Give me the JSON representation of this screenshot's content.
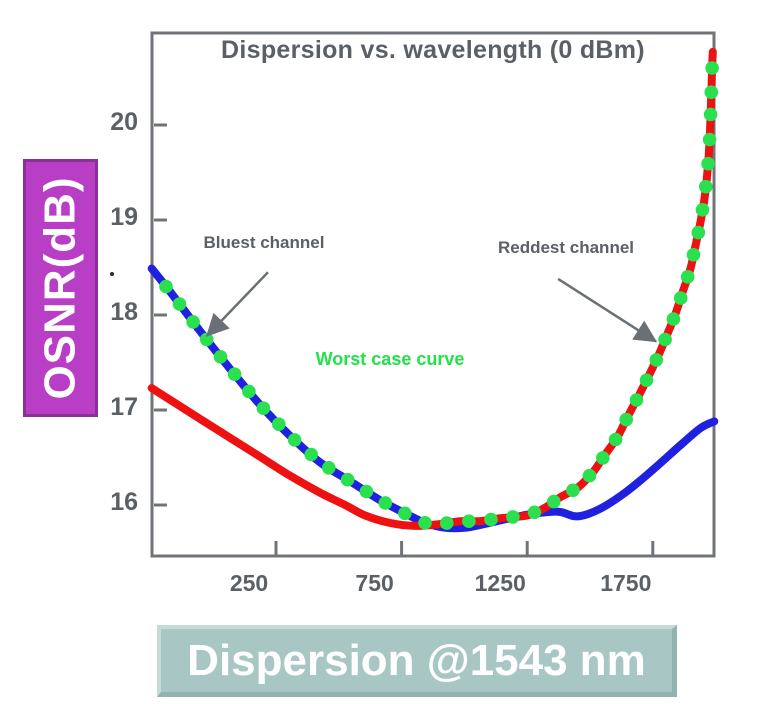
{
  "page": {
    "background": "#ffffff",
    "text_gray": "#5a6066",
    "axis_gray": "#70747a"
  },
  "ylabel_box": {
    "text": "OSNR(dB)",
    "fill": "#b93ec6",
    "border": "#8d2f98",
    "text_color": "#ffffff"
  },
  "xlabel_box": {
    "text": "Dispersion @1543 nm",
    "fill": "#a8c7c4",
    "text_color": "#ffffff"
  },
  "chart_data": {
    "type": "line",
    "title": "Dispersion vs. wavelength (0 dBm)",
    "xlabel": "Dispersion @1543 nm",
    "ylabel": "OSNR(dB)",
    "x_ticks": [
      250,
      750,
      1250,
      1750
    ],
    "y_ticks": [
      16,
      17,
      18,
      19,
      20
    ],
    "xlim": [
      -245,
      2000
    ],
    "ylim": [
      15.46,
      20.97
    ],
    "grid": false,
    "legend": "none",
    "series": [
      {
        "name": "Bluest channel",
        "color": "#2020df",
        "style": "solid",
        "points": [
          [
            -245,
            18.49
          ],
          [
            -170,
            18.24
          ],
          [
            -55,
            17.84
          ],
          [
            65,
            17.44
          ],
          [
            185,
            17.06
          ],
          [
            305,
            16.73
          ],
          [
            425,
            16.45
          ],
          [
            545,
            16.25
          ],
          [
            665,
            16.05
          ],
          [
            765,
            15.91
          ],
          [
            845,
            15.81
          ],
          [
            925,
            15.76
          ],
          [
            1000,
            15.76
          ],
          [
            1080,
            15.8
          ],
          [
            1180,
            15.86
          ],
          [
            1280,
            15.91
          ],
          [
            1375,
            15.93
          ],
          [
            1450,
            15.88
          ],
          [
            1540,
            15.96
          ],
          [
            1645,
            16.14
          ],
          [
            1750,
            16.37
          ],
          [
            1860,
            16.63
          ],
          [
            1940,
            16.81
          ],
          [
            1995,
            16.88
          ]
        ]
      },
      {
        "name": "Reddest channel",
        "color": "#ee1111",
        "style": "solid",
        "points": [
          [
            -245,
            17.23
          ],
          [
            -150,
            17.07
          ],
          [
            -55,
            16.91
          ],
          [
            65,
            16.71
          ],
          [
            185,
            16.51
          ],
          [
            305,
            16.31
          ],
          [
            425,
            16.13
          ],
          [
            525,
            16.0
          ],
          [
            605,
            15.89
          ],
          [
            705,
            15.81
          ],
          [
            805,
            15.78
          ],
          [
            905,
            15.8
          ],
          [
            985,
            15.83
          ],
          [
            1060,
            15.83
          ],
          [
            1140,
            15.86
          ],
          [
            1250,
            15.89
          ],
          [
            1320,
            15.97
          ],
          [
            1380,
            16.08
          ],
          [
            1450,
            16.18
          ],
          [
            1510,
            16.34
          ],
          [
            1560,
            16.53
          ],
          [
            1610,
            16.72
          ],
          [
            1650,
            16.93
          ],
          [
            1690,
            17.13
          ],
          [
            1730,
            17.34
          ],
          [
            1770,
            17.56
          ],
          [
            1805,
            17.78
          ],
          [
            1840,
            18.01
          ],
          [
            1870,
            18.25
          ],
          [
            1900,
            18.49
          ],
          [
            1920,
            18.73
          ],
          [
            1940,
            18.98
          ],
          [
            1957,
            19.25
          ],
          [
            1969,
            19.55
          ],
          [
            1977,
            19.89
          ],
          [
            1982,
            20.26
          ],
          [
            1986,
            20.6
          ],
          [
            1989,
            20.77
          ]
        ]
      },
      {
        "name": "Worst case curve",
        "color": "#2ae04e",
        "style": "dots",
        "derived_from": "upper envelope of Bluest and Reddest channel curves"
      }
    ],
    "annotations": [
      {
        "text": "Bluest channel",
        "color": "#5a6066",
        "arrow": {
          "from": [
            218,
            18.45
          ],
          "to": [
            -25,
            17.78
          ]
        }
      },
      {
        "text": "Reddest channel",
        "color": "#5a6066",
        "arrow": {
          "from": [
            1373,
            18.38
          ],
          "to": [
            1763,
            17.72
          ]
        }
      },
      {
        "text": "Worst case curve",
        "color": "#22e14b",
        "arrow": null
      }
    ]
  }
}
